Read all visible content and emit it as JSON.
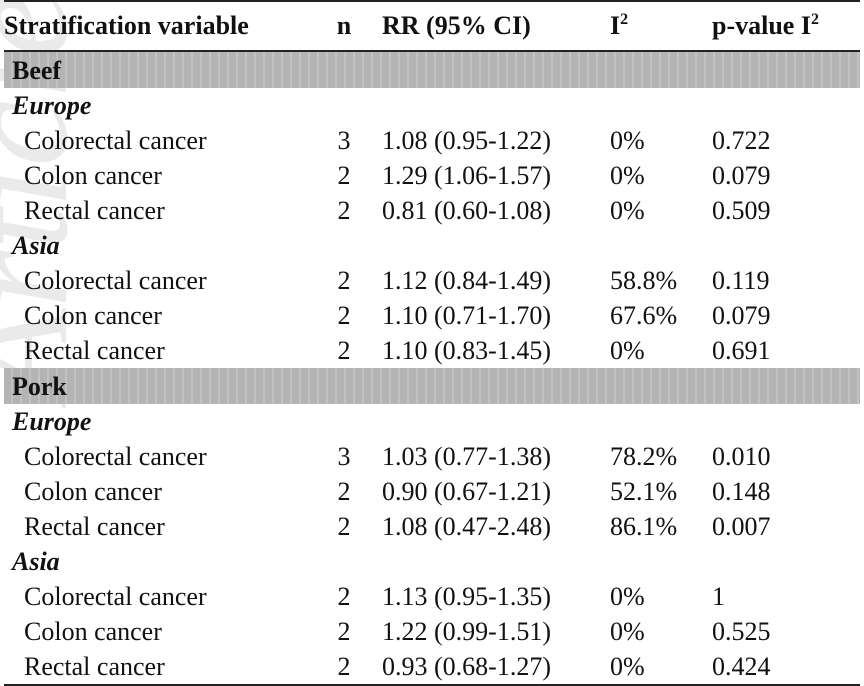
{
  "header": {
    "stratification": "Stratification variable",
    "n": "n",
    "rr": "RR (95% CI)",
    "i2_base": "I",
    "i2_sup": "2",
    "pvalue_base": "p-value I",
    "pvalue_sup": "2"
  },
  "watermark": "Article",
  "groups": [
    {
      "label": "Beef",
      "regions": [
        {
          "label": "Europe",
          "rows": [
            {
              "site": "Colorectal cancer",
              "n": "3",
              "rr": "1.08 (0.95-1.22)",
              "i2": "0%",
              "p": "0.722"
            },
            {
              "site": "Colon cancer",
              "n": "2",
              "rr": "1.29 (1.06-1.57)",
              "i2": "0%",
              "p": "0.079"
            },
            {
              "site": "Rectal cancer",
              "n": "2",
              "rr": "0.81 (0.60-1.08)",
              "i2": "0%",
              "p": "0.509"
            }
          ]
        },
        {
          "label": "Asia",
          "rows": [
            {
              "site": "Colorectal cancer",
              "n": "2",
              "rr": "1.12 (0.84-1.49)",
              "i2": "58.8%",
              "p": "0.119"
            },
            {
              "site": "Colon cancer",
              "n": "2",
              "rr": "1.10 (0.71-1.70)",
              "i2": "67.6%",
              "p": "0.079"
            },
            {
              "site": "Rectal cancer",
              "n": "2",
              "rr": "1.10 (0.83-1.45)",
              "i2": "0%",
              "p": "0.691"
            }
          ]
        }
      ]
    },
    {
      "label": "Pork",
      "regions": [
        {
          "label": "Europe",
          "rows": [
            {
              "site": "Colorectal cancer",
              "n": "3",
              "rr": "1.03 (0.77-1.38)",
              "i2": "78.2%",
              "p": "0.010"
            },
            {
              "site": "Colon cancer",
              "n": "2",
              "rr": "0.90 (0.67-1.21)",
              "i2": "52.1%",
              "p": "0.148"
            },
            {
              "site": "Rectal cancer",
              "n": "2",
              "rr": "1.08 (0.47-2.48)",
              "i2": "86.1%",
              "p": "0.007"
            }
          ]
        },
        {
          "label": "Asia",
          "rows": [
            {
              "site": "Colorectal cancer",
              "n": "2",
              "rr": "1.13 (0.95-1.35)",
              "i2": "0%",
              "p": "1"
            },
            {
              "site": "Colon cancer",
              "n": "2",
              "rr": "1.22 (0.99-1.51)",
              "i2": "0%",
              "p": "0.525"
            },
            {
              "site": "Rectal cancer",
              "n": "2",
              "rr": "0.93 (0.68-1.27)",
              "i2": "0%",
              "p": "0.424"
            }
          ]
        }
      ]
    }
  ]
}
